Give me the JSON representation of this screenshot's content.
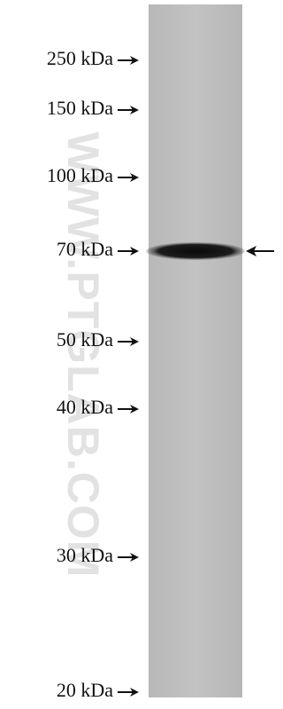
{
  "markers": [
    {
      "label": "250 kDa"
    },
    {
      "label": "150 kDa"
    },
    {
      "label": "100 kDa"
    },
    {
      "label": "70 kDa"
    },
    {
      "label": "50 kDa"
    },
    {
      "label": "40 kDa"
    },
    {
      "label": "30 kDa"
    },
    {
      "label": "20 kDa"
    }
  ],
  "watermark": "WWW.PTGLAB.COM"
}
